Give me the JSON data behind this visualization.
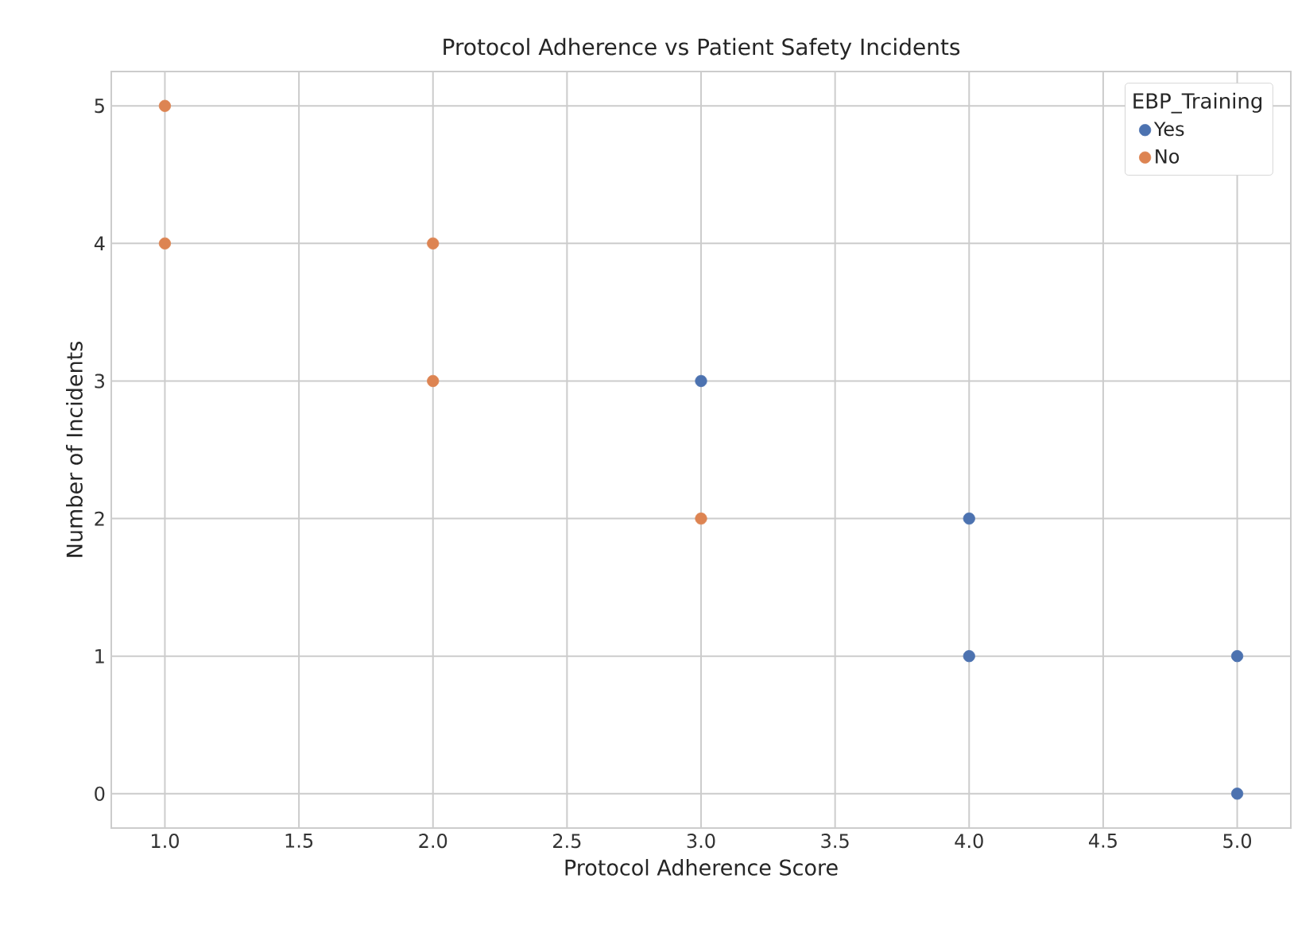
{
  "chart_data": {
    "type": "scatter",
    "title": "Protocol Adherence vs Patient Safety Incidents",
    "xlabel": "Protocol Adherence Score",
    "ylabel": "Number of Incidents",
    "legend_title": "EBP_Training",
    "xlim": [
      0.8,
      5.2
    ],
    "ylim": [
      -0.25,
      5.25
    ],
    "xticks": [
      {
        "value": 1,
        "label": "1.0"
      },
      {
        "value": 1.5,
        "label": "1.5"
      },
      {
        "value": 2,
        "label": "2.0"
      },
      {
        "value": 2.5,
        "label": "2.5"
      },
      {
        "value": 3,
        "label": "3.0"
      },
      {
        "value": 3.5,
        "label": "3.5"
      },
      {
        "value": 4,
        "label": "4.0"
      },
      {
        "value": 4.5,
        "label": "4.5"
      },
      {
        "value": 5,
        "label": "5.0"
      }
    ],
    "yticks": [
      0,
      1,
      2,
      3,
      4,
      5
    ],
    "grid": true,
    "legend": "top right",
    "series": [
      {
        "name": "Yes",
        "color": "#4c72b0",
        "x": [
          3,
          4,
          4,
          5,
          5
        ],
        "values": [
          3,
          2,
          1,
          1,
          0
        ]
      },
      {
        "name": "No",
        "color": "#dd8452",
        "x": [
          1,
          1,
          2,
          2,
          3
        ],
        "values": [
          5,
          4,
          4,
          3,
          2
        ]
      }
    ]
  }
}
